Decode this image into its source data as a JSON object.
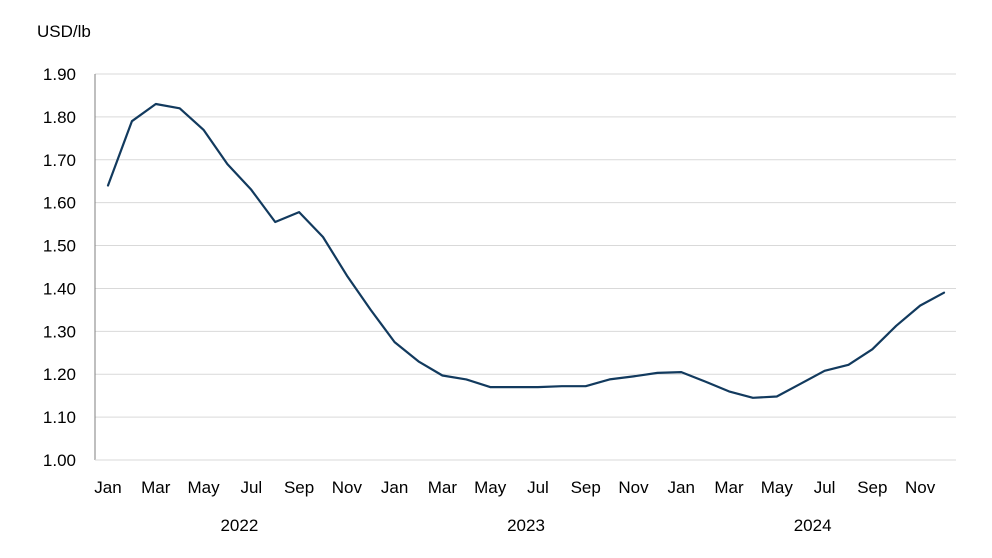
{
  "chart_data": {
    "type": "line",
    "ylabel": "USD/lb",
    "ylim": [
      1.0,
      1.9
    ],
    "yticks": [
      "1.00",
      "1.10",
      "1.20",
      "1.30",
      "1.40",
      "1.50",
      "1.60",
      "1.70",
      "1.80",
      "1.90"
    ],
    "grid": true,
    "legend": "none",
    "x": [
      "Jan 2022",
      "Feb 2022",
      "Mar 2022",
      "Apr 2022",
      "May 2022",
      "Jun 2022",
      "Jul 2022",
      "Aug 2022",
      "Sep 2022",
      "Oct 2022",
      "Nov 2022",
      "Dec 2022",
      "Jan 2023",
      "Feb 2023",
      "Mar 2023",
      "Apr 2023",
      "May 2023",
      "Jun 2023",
      "Jul 2023",
      "Aug 2023",
      "Sep 2023",
      "Oct 2023",
      "Nov 2023",
      "Dec 2023",
      "Jan 2024",
      "Feb 2024",
      "Mar 2024",
      "Apr 2024",
      "May 2024",
      "Jun 2024",
      "Jul 2024",
      "Aug 2024",
      "Sep 2024",
      "Oct 2024",
      "Nov 2024",
      "Dec 2024"
    ],
    "month_labels": [
      "Jan",
      "Mar",
      "May",
      "Jul",
      "Sep",
      "Nov",
      "Jan",
      "Mar",
      "May",
      "Jul",
      "Sep",
      "Nov",
      "Jan",
      "Mar",
      "May",
      "Jul",
      "Sep",
      "Nov"
    ],
    "years": [
      "2022",
      "2023",
      "2024"
    ],
    "series": [
      {
        "values": [
          1.64,
          1.79,
          1.83,
          1.82,
          1.77,
          1.69,
          1.63,
          1.555,
          1.578,
          1.52,
          1.43,
          1.35,
          1.275,
          1.23,
          1.197,
          1.188,
          1.17,
          1.17,
          1.17,
          1.172,
          1.172,
          1.188,
          1.195,
          1.203,
          1.205,
          1.183,
          1.16,
          1.145,
          1.148,
          1.178,
          1.208,
          1.222,
          1.258,
          1.313,
          1.36,
          1.39
        ],
        "color": "#123a5e"
      }
    ]
  }
}
